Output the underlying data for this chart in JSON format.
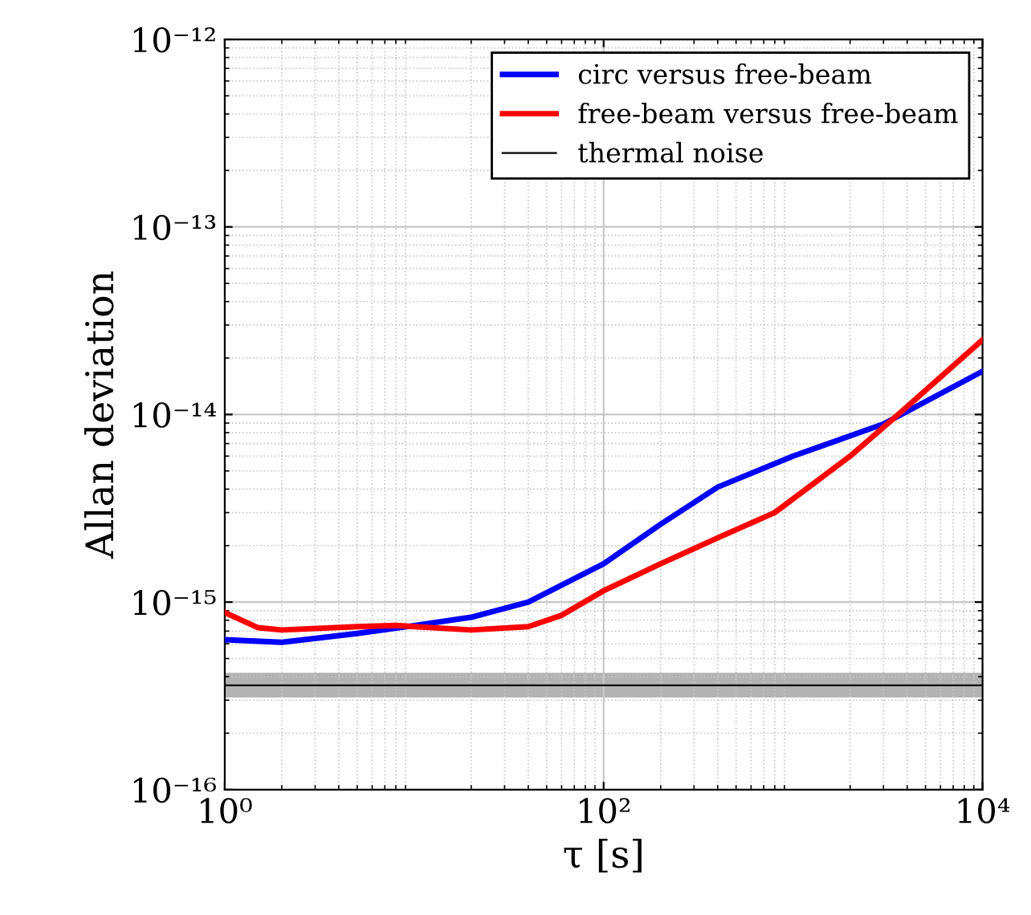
{
  "chart_data": {
    "type": "line",
    "xlabel": "τ [s]",
    "ylabel": "Allan deviation",
    "log": "xy",
    "grid": true,
    "legend": "top right",
    "xlim": [
      1,
      10000
    ],
    "ylim": [
      1e-16,
      1e-12
    ],
    "xticks": [
      {
        "value": 1,
        "label": "10⁰"
      },
      {
        "value": 100,
        "label": "10²"
      },
      {
        "value": 10000,
        "label": "10⁴"
      }
    ],
    "yticks": [
      {
        "value": 1e-16,
        "label": "10⁻¹⁶"
      },
      {
        "value": 1e-15,
        "label": "10⁻¹⁵"
      },
      {
        "value": 1e-14,
        "label": "10⁻¹⁴"
      },
      {
        "value": 1e-13,
        "label": "10⁻¹³"
      },
      {
        "value": 1e-12,
        "label": "10⁻¹²"
      }
    ],
    "bands": [
      {
        "axis": "y",
        "from": 3.1e-16,
        "to": 4.2e-16,
        "color": "#808080"
      }
    ],
    "series": [
      {
        "name": "circ versus free-beam",
        "color": "#0000ff",
        "x": [
          1,
          2,
          5,
          10,
          20,
          40,
          100,
          200,
          400,
          1000,
          3000,
          10000
        ],
        "values": [
          6.3e-16,
          6.1e-16,
          6.8e-16,
          7.5e-16,
          8.3e-16,
          1e-15,
          1.6e-15,
          2.6e-15,
          4.1e-15,
          6e-15,
          8.9e-15,
          1.7e-14
        ]
      },
      {
        "name": "free-beam versus free-beam",
        "color": "#ff0000",
        "x": [
          1,
          1.5,
          2,
          5,
          8,
          20,
          40,
          60,
          100,
          200,
          400,
          800,
          2000,
          4000,
          10000
        ],
        "values": [
          8.8e-16,
          7.3e-16,
          7.1e-16,
          7.4e-16,
          7.5e-16,
          7.1e-16,
          7.4e-16,
          8.5e-16,
          1.15e-15,
          1.6e-15,
          2.2e-15,
          3e-15,
          6e-15,
          1.1e-14,
          2.5e-14
        ]
      },
      {
        "name": "thermal noise",
        "color": "#000000",
        "x": [
          1,
          10000
        ],
        "values": [
          3.6e-16,
          3.6e-16
        ]
      }
    ]
  }
}
